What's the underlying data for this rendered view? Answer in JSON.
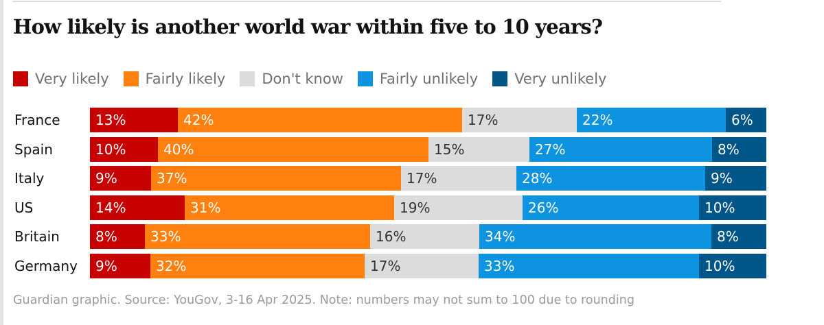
{
  "chart_data": {
    "type": "bar",
    "orientation": "horizontal",
    "stacked": true,
    "normalized": true,
    "title": "How likely is another world war within five to 10 years?",
    "categories": [
      "France",
      "Spain",
      "Italy",
      "US",
      "Britain",
      "Germany"
    ],
    "series": [
      {
        "name": "Very likely",
        "color": "#c70000",
        "label_color": "#ffffff",
        "values": [
          13,
          10,
          9,
          14,
          8,
          9
        ]
      },
      {
        "name": "Fairly likely",
        "color": "#ff7f0f",
        "label_color": "#ffffff",
        "values": [
          42,
          40,
          37,
          31,
          33,
          32
        ]
      },
      {
        "name": "Don't know",
        "color": "#dcdcdc",
        "label_color": "#333333",
        "values": [
          17,
          15,
          17,
          19,
          16,
          17
        ]
      },
      {
        "name": "Fairly unlikely",
        "color": "#0e93e0",
        "label_color": "#ffffff",
        "values": [
          22,
          27,
          28,
          26,
          34,
          33
        ]
      },
      {
        "name": "Very unlikely",
        "color": "#005689",
        "label_color": "#ffffff",
        "values": [
          6,
          8,
          9,
          10,
          8,
          10
        ]
      }
    ],
    "value_suffix": "%",
    "xlabel": "",
    "ylabel": "",
    "grid": false,
    "legend_position": "top-left",
    "source": "Guardian graphic. Source: YouGov, 3-16 Apr 2025. Note: numbers may not sum to 100 due to rounding"
  }
}
